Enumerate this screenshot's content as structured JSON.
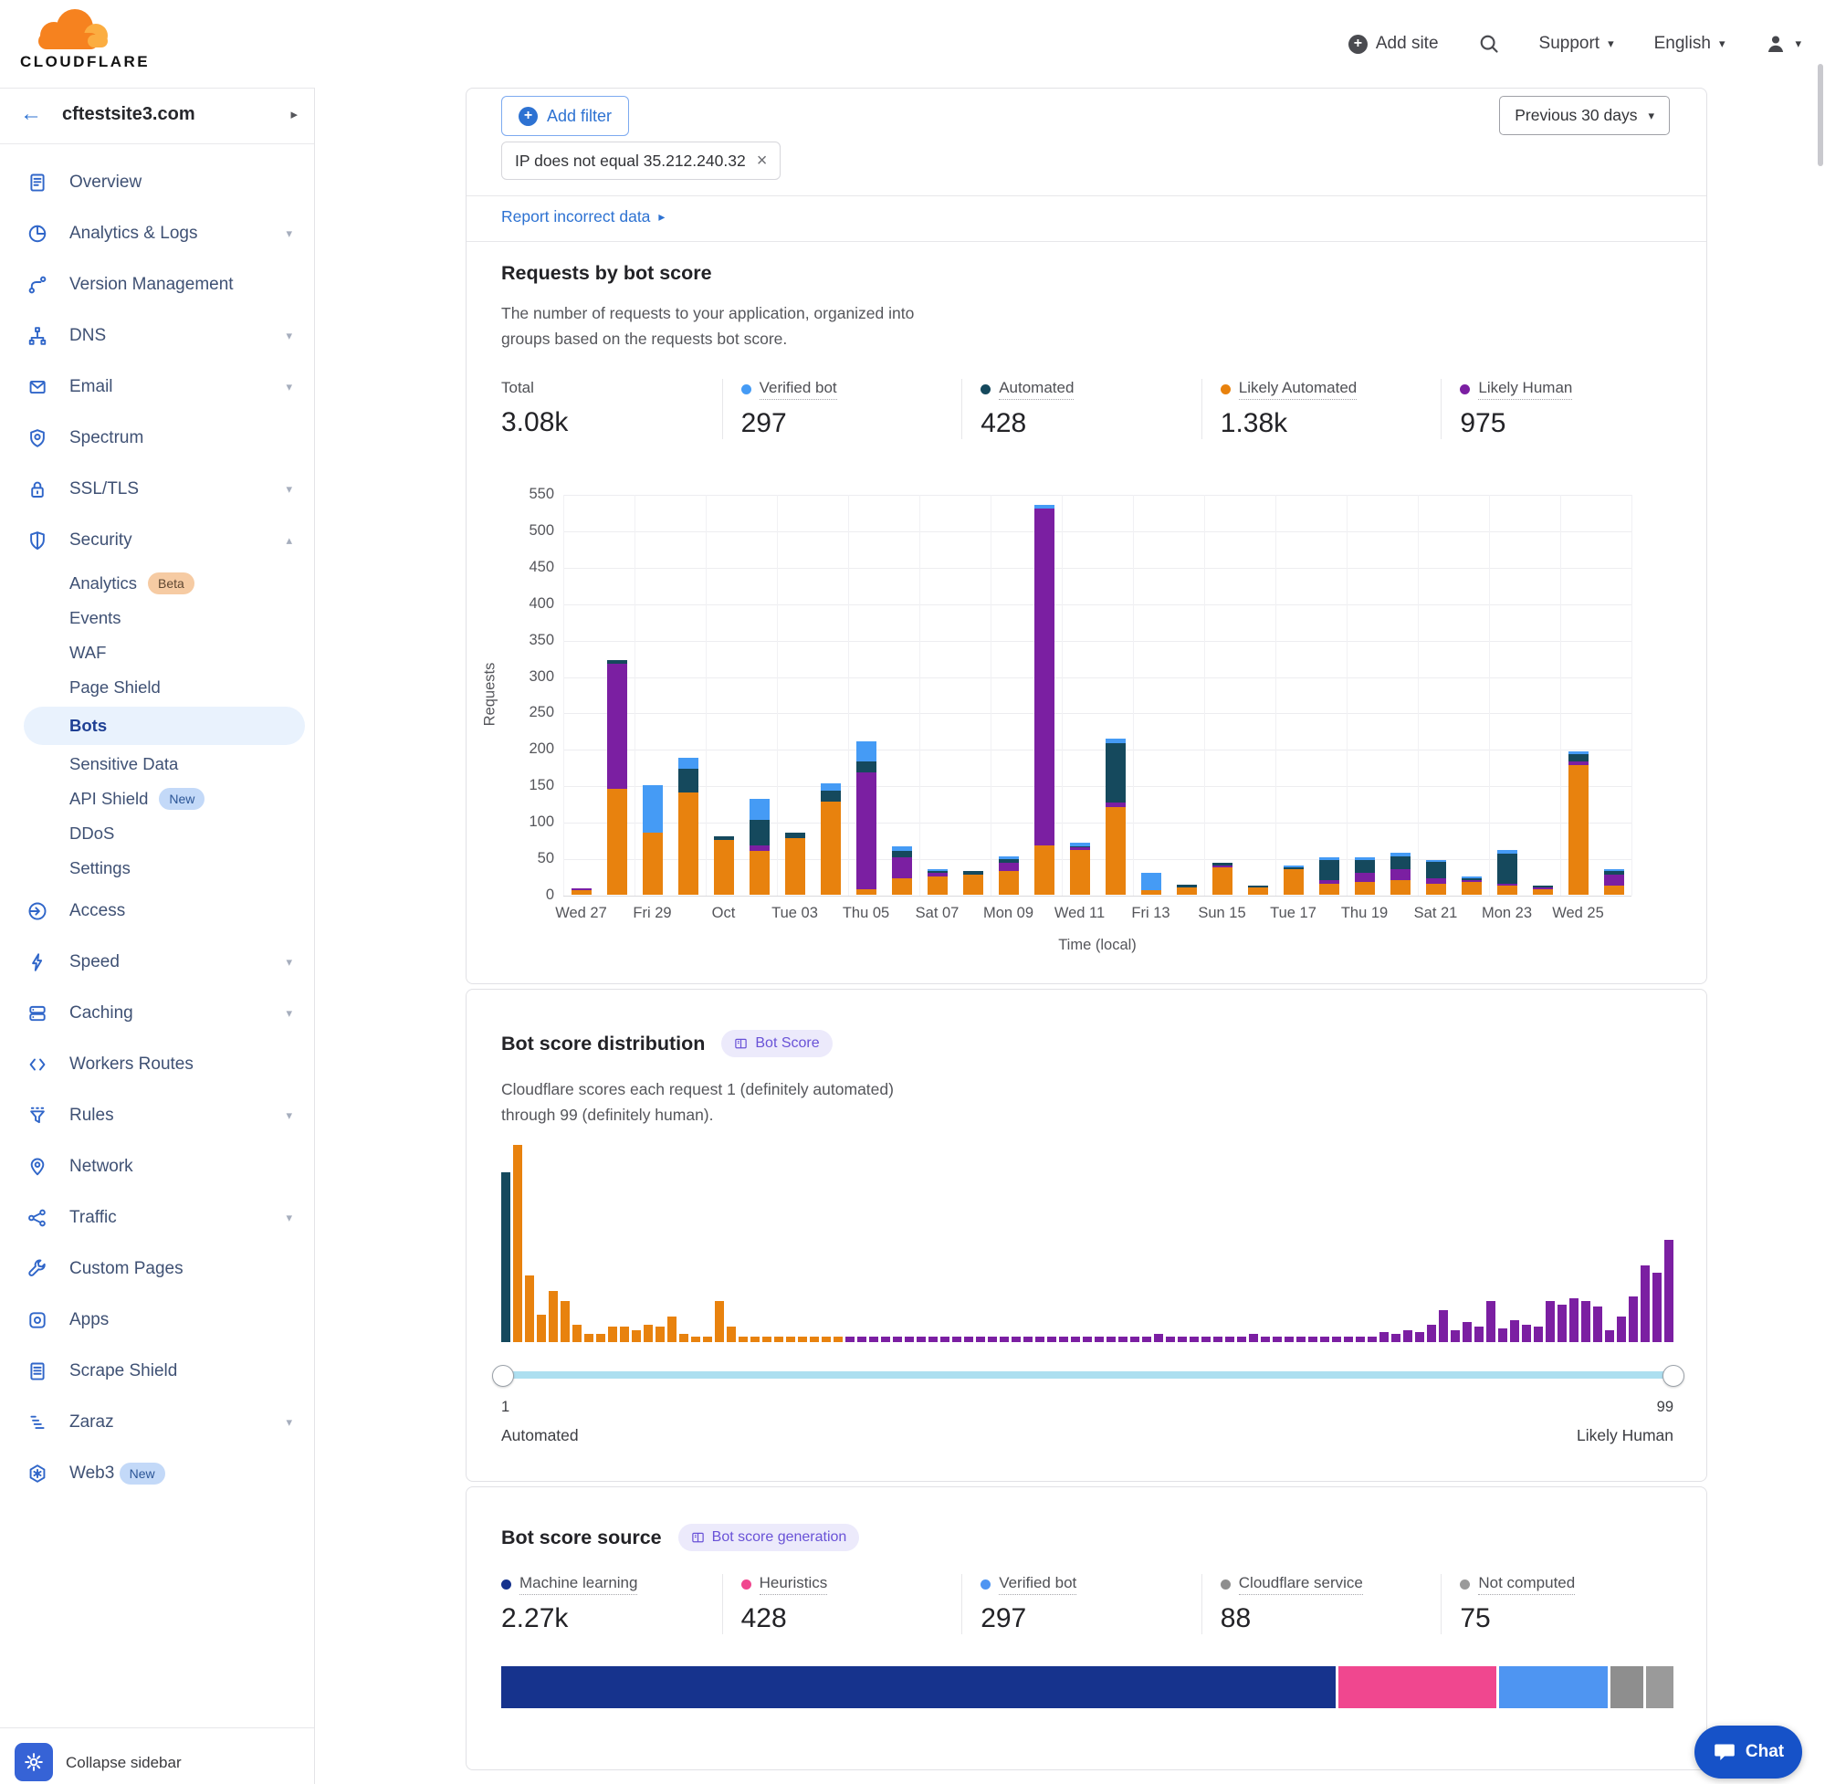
{
  "header": {
    "brand": "CLOUDFLARE",
    "add_site_label": "Add site",
    "support_label": "Support",
    "language_label": "English"
  },
  "sidebar": {
    "site_name": "cftestsite3.com",
    "collapse_label": "Collapse sidebar",
    "items": [
      {
        "label": "Overview",
        "icon": "overview-icon"
      },
      {
        "label": "Analytics & Logs",
        "icon": "analytics-icon",
        "chevron": "down"
      },
      {
        "label": "Version Management",
        "icon": "version-icon"
      },
      {
        "label": "DNS",
        "icon": "dns-icon",
        "chevron": "down"
      },
      {
        "label": "Email",
        "icon": "email-icon",
        "chevron": "down"
      },
      {
        "label": "Spectrum",
        "icon": "spectrum-icon"
      },
      {
        "label": "SSL/TLS",
        "icon": "lock-icon",
        "chevron": "down"
      },
      {
        "label": "Security",
        "icon": "shield-icon",
        "chevron": "up",
        "children": [
          {
            "label": "Analytics",
            "badge": {
              "text": "Beta",
              "style": "beta"
            }
          },
          {
            "label": "Events"
          },
          {
            "label": "WAF"
          },
          {
            "label": "Page Shield"
          },
          {
            "label": "Bots",
            "active": true
          },
          {
            "label": "Sensitive Data"
          },
          {
            "label": "API Shield",
            "badge": {
              "text": "New",
              "style": "new"
            }
          },
          {
            "label": "DDoS"
          },
          {
            "label": "Settings"
          }
        ]
      },
      {
        "label": "Access",
        "icon": "access-icon"
      },
      {
        "label": "Speed",
        "icon": "speed-icon",
        "chevron": "down"
      },
      {
        "label": "Caching",
        "icon": "caching-icon",
        "chevron": "down"
      },
      {
        "label": "Workers Routes",
        "icon": "workers-icon"
      },
      {
        "label": "Rules",
        "icon": "rules-icon",
        "chevron": "down"
      },
      {
        "label": "Network",
        "icon": "network-icon"
      },
      {
        "label": "Traffic",
        "icon": "traffic-icon",
        "chevron": "down"
      },
      {
        "label": "Custom Pages",
        "icon": "wrench-icon"
      },
      {
        "label": "Apps",
        "icon": "apps-icon"
      },
      {
        "label": "Scrape Shield",
        "icon": "scrape-icon"
      },
      {
        "label": "Zaraz",
        "icon": "zaraz-icon",
        "chevron": "down"
      },
      {
        "label": "Web3",
        "icon": "web3-icon",
        "badge": {
          "text": "New",
          "style": "new"
        }
      }
    ]
  },
  "toolbar": {
    "add_filter_label": "Add filter",
    "filter_chip": "IP does not equal 35.212.240.32",
    "date_range_label": "Previous 30 days"
  },
  "report_link_label": "Report incorrect data",
  "requests_section": {
    "title": "Requests by bot score",
    "description_line1": "The number of requests to your application, organized into",
    "description_line2": "groups based on the requests bot score.",
    "stats": [
      {
        "label": "Total",
        "value": "3.08k"
      },
      {
        "label": "Verified bot",
        "value": "297",
        "color": "#459BF5"
      },
      {
        "label": "Automated",
        "value": "428",
        "color": "#15495D"
      },
      {
        "label": "Likely Automated",
        "value": "1.38k",
        "color": "#E8820E"
      },
      {
        "label": "Likely Human",
        "value": "975",
        "color": "#7B1FA2"
      }
    ]
  },
  "distribution_section": {
    "title": "Bot score distribution",
    "badge": "Bot Score",
    "description_line1": "Cloudflare scores each request 1 (definitely automated)",
    "description_line2": "through 99 (definitely human).",
    "slider_min": "1",
    "slider_max": "99",
    "left_label": "Automated",
    "right_label": "Likely Human"
  },
  "source_section": {
    "title": "Bot score source",
    "badge": "Bot score generation",
    "stats": [
      {
        "label": "Machine learning",
        "value": "2.27k",
        "color": "#16338D"
      },
      {
        "label": "Heuristics",
        "value": "428",
        "color": "#F0478F"
      },
      {
        "label": "Verified bot",
        "value": "297",
        "color": "#4E95F2"
      },
      {
        "label": "Cloudflare service",
        "value": "88",
        "color": "#8E8E8E"
      },
      {
        "label": "Not computed",
        "value": "75",
        "color": "#9A9A9A"
      }
    ]
  },
  "chat_label": "Chat",
  "chart_data": [
    {
      "id": "requests_by_bot_score",
      "type": "bar",
      "stacked": true,
      "title": "Requests by bot score",
      "xlabel": "Time (local)",
      "ylabel": "Requests",
      "ylim": [
        0,
        550
      ],
      "ytick_step": 50,
      "grid": true,
      "n_bars": 30,
      "tick_every": 2,
      "x_tick_labels": [
        "Wed 27",
        "Fri 29",
        "Oct",
        "Tue 03",
        "Thu 05",
        "Sat 07",
        "Mon 09",
        "Wed 11",
        "Fri 13",
        "Sun 15",
        "Tue 17",
        "Thu 19",
        "Sat 21",
        "Mon 23",
        "Wed 25"
      ],
      "series": [
        {
          "name": "Likely Automated",
          "color": "#E8820E",
          "values": [
            6,
            145,
            85,
            140,
            75,
            60,
            78,
            128,
            8,
            22,
            25,
            27,
            32,
            68,
            62,
            120,
            6,
            10,
            38,
            10,
            35,
            15,
            18,
            20,
            15,
            18,
            12,
            8,
            178,
            12
          ]
        },
        {
          "name": "Likely Human",
          "color": "#7B1FA2",
          "values": [
            3,
            172,
            0,
            0,
            0,
            8,
            0,
            0,
            160,
            30,
            5,
            0,
            12,
            462,
            3,
            6,
            0,
            0,
            2,
            0,
            0,
            5,
            12,
            15,
            8,
            2,
            3,
            2,
            5,
            15
          ]
        },
        {
          "name": "Automated",
          "color": "#15495D",
          "values": [
            0,
            5,
            0,
            33,
            5,
            35,
            7,
            15,
            15,
            8,
            3,
            5,
            5,
            0,
            2,
            82,
            0,
            4,
            4,
            2,
            3,
            28,
            18,
            18,
            22,
            3,
            42,
            2,
            10,
            5
          ]
        },
        {
          "name": "Verified bot",
          "color": "#459BF5",
          "values": [
            0,
            0,
            65,
            15,
            0,
            28,
            0,
            10,
            27,
            6,
            2,
            0,
            4,
            5,
            5,
            6,
            24,
            0,
            0,
            0,
            2,
            4,
            4,
            5,
            3,
            2,
            4,
            0,
            4,
            3
          ]
        }
      ],
      "totals": {
        "total": "3.08k",
        "verified_bot": "297",
        "automated": "428",
        "likely_automated": "1.38k",
        "likely_human": "975"
      }
    },
    {
      "id": "bot_score_distribution",
      "type": "bar",
      "title": "Bot score distribution",
      "x_range": [
        1,
        99
      ],
      "value_unit": "relative_height_percent_of_max",
      "values": [
        86,
        100,
        34,
        14,
        26,
        21,
        9,
        4,
        4,
        8,
        8,
        6,
        9,
        8,
        13,
        4,
        3,
        3,
        21,
        8,
        3,
        3,
        3,
        3,
        3,
        3,
        3,
        3,
        3,
        3,
        3,
        3,
        3,
        3,
        3,
        3,
        3,
        3,
        3,
        3,
        3,
        3,
        3,
        3,
        3,
        3,
        3,
        3,
        3,
        3,
        3,
        3,
        3,
        3,
        3,
        4,
        3,
        3,
        3,
        3,
        3,
        3,
        3,
        4,
        3,
        3,
        3,
        3,
        3,
        3,
        3,
        3,
        3,
        3,
        5,
        4,
        6,
        5,
        9,
        16,
        6,
        10,
        8,
        21,
        7,
        11,
        9,
        8,
        21,
        19,
        22,
        21,
        18,
        6,
        13,
        23,
        39,
        35,
        52
      ],
      "colors_by_score": {
        "1": "#15495D",
        "2-29": "#E8820E",
        "30-99": "#7B1FA2"
      }
    },
    {
      "id": "bot_score_source",
      "type": "stacked_horizontal_bar",
      "title": "Bot score source",
      "segments": [
        {
          "label": "Machine learning",
          "value": 2270,
          "color": "#16338D"
        },
        {
          "label": "Heuristics",
          "value": 428,
          "color": "#F0478F"
        },
        {
          "label": "Verified bot",
          "value": 297,
          "color": "#4E95F2"
        },
        {
          "label": "Cloudflare service",
          "value": 88,
          "color": "#8E8E8E"
        },
        {
          "label": "Not computed",
          "value": 75,
          "color": "#9A9A9A"
        }
      ]
    }
  ]
}
